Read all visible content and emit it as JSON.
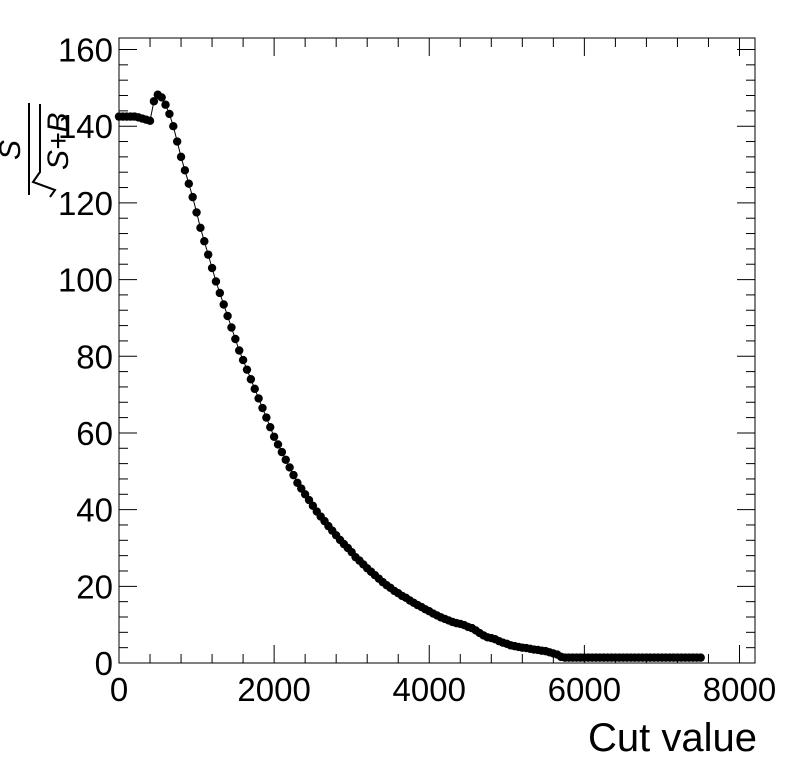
{
  "chart_data": {
    "type": "scatter",
    "title": "",
    "xlabel": "Cut value",
    "ylabel": {
      "numerator": "S",
      "denominator": "S+B"
    },
    "xlim": [
      0,
      8200
    ],
    "ylim": [
      0,
      163
    ],
    "xticks": [
      0,
      2000,
      4000,
      6000,
      8000
    ],
    "xtick_labels": [
      "0",
      "2000",
      "4000",
      "6000",
      "8000"
    ],
    "yticks": [
      0,
      20,
      40,
      60,
      80,
      100,
      120,
      140,
      160
    ],
    "ytick_labels": [
      "0",
      "20",
      "40",
      "60",
      "80",
      "100",
      "120",
      "140",
      "160"
    ],
    "grid": false,
    "series": [
      {
        "connected": true,
        "marker_color": "#000000",
        "x": [
          0,
          50,
          100,
          150,
          200,
          250,
          300,
          350,
          400,
          450,
          500,
          550,
          600,
          650,
          700,
          750,
          800,
          850,
          900,
          950,
          1000,
          1050,
          1100,
          1150,
          1200,
          1250,
          1300,
          1350,
          1400,
          1450,
          1500,
          1550,
          1600,
          1650,
          1700,
          1750,
          1800,
          1850,
          1900,
          1950,
          2000,
          2050,
          2100,
          2150,
          2200,
          2250,
          2300,
          2350,
          2400,
          2450,
          2500,
          2550,
          2600,
          2650,
          2700,
          2750,
          2800,
          2850,
          2900,
          2950,
          3000,
          3050,
          3100,
          3150,
          3200,
          3250,
          3300,
          3350,
          3400,
          3450,
          3500,
          3550,
          3600,
          3650,
          3700,
          3750,
          3800,
          3850,
          3900,
          3950,
          4000,
          4050,
          4100,
          4150,
          4200,
          4250,
          4300,
          4350,
          4400,
          4450,
          4500,
          4550,
          4600,
          4650,
          4700,
          4750,
          4800,
          4850,
          4900,
          4950,
          5000,
          5050,
          5100,
          5150,
          5200,
          5250,
          5300,
          5350,
          5400,
          5450,
          5500,
          5550,
          5600,
          5650,
          5700,
          5750,
          5800,
          5850,
          5900,
          5950,
          6000,
          6050,
          6100,
          6150,
          6200,
          6250,
          6300,
          6350,
          6400,
          6450,
          6500,
          6550,
          6600,
          6650,
          6700,
          6750,
          6800,
          6850,
          6900,
          6950,
          7000,
          7050,
          7100,
          7150,
          7200,
          7250,
          7300,
          7350,
          7400,
          7450,
          7500
        ],
        "y": [
          142.5,
          142.5,
          142.5,
          142.5,
          142.5,
          142.3,
          142.0,
          141.7,
          141.4,
          146.5,
          148.2,
          147.5,
          145.6,
          143.2,
          140.0,
          136.0,
          132.0,
          128.5,
          125.0,
          121.5,
          117.5,
          113.5,
          110.0,
          106.5,
          103.0,
          99.5,
          96.5,
          93.5,
          90.5,
          87.5,
          84.5,
          81.5,
          79.0,
          76.5,
          74.0,
          71.5,
          69.0,
          66.5,
          64.0,
          61.5,
          59.0,
          57.0,
          55.0,
          53.0,
          51.0,
          49.0,
          47.0,
          45.5,
          44.0,
          42.5,
          41.0,
          39.5,
          38.2,
          37.0,
          35.7,
          34.5,
          33.3,
          32.1,
          31.0,
          30.0,
          28.9,
          27.6,
          26.7,
          25.7,
          24.7,
          23.8,
          22.9,
          22.0,
          21.1,
          20.3,
          19.6,
          18.8,
          18.2,
          17.5,
          17.0,
          16.3,
          15.7,
          15.1,
          14.6,
          14.0,
          13.5,
          12.9,
          12.4,
          11.9,
          11.5,
          11.1,
          10.7,
          10.4,
          10.2,
          9.9,
          9.4,
          9.1,
          8.5,
          7.8,
          7.2,
          6.7,
          6.5,
          6.2,
          5.7,
          5.3,
          5.0,
          4.6,
          4.4,
          4.2,
          4.0,
          3.9,
          3.7,
          3.5,
          3.4,
          3.2,
          3.1,
          2.8,
          2.5,
          2.2,
          1.6,
          1.4,
          1.4,
          1.4,
          1.4,
          1.4,
          1.4,
          1.4,
          1.4,
          1.4,
          1.4,
          1.4,
          1.4,
          1.4,
          1.4,
          1.4,
          1.4,
          1.4,
          1.4,
          1.4,
          1.4,
          1.4,
          1.4,
          1.4,
          1.4,
          1.4,
          1.4,
          1.4,
          1.4,
          1.4,
          1.4,
          1.4,
          1.4,
          1.4,
          1.4,
          1.4,
          1.4
        ]
      }
    ]
  }
}
